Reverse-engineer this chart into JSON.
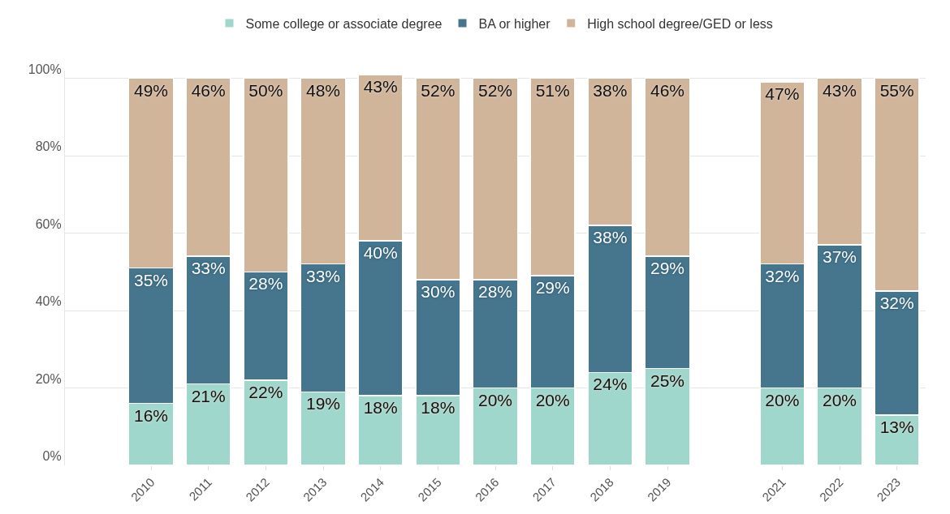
{
  "chart_data": {
    "type": "bar",
    "stacked": true,
    "categories": [
      "2010",
      "2011",
      "2012",
      "2013",
      "2014",
      "2015",
      "2016",
      "2017",
      "2018",
      "2019",
      null,
      "2021",
      "2022",
      "2023"
    ],
    "series": [
      {
        "name": "Some college or associate degree",
        "color": "#a0d7cd",
        "values": [
          16,
          21,
          22,
          19,
          18,
          18,
          20,
          20,
          24,
          25,
          null,
          20,
          20,
          13
        ],
        "value_labels": [
          "16%",
          "21%",
          "22%",
          "19%",
          "18%",
          "18%",
          "20%",
          "20%",
          "24%",
          "25%",
          null,
          "20%",
          "20%",
          "13%"
        ]
      },
      {
        "name": "BA or higher",
        "color": "#46768d",
        "values": [
          35,
          33,
          28,
          33,
          40,
          30,
          28,
          29,
          38,
          29,
          null,
          32,
          37,
          32
        ],
        "value_labels": [
          "35%",
          "33%",
          "28%",
          "33%",
          "40%",
          "30%",
          "28%",
          "29%",
          "38%",
          "29%",
          null,
          "32%",
          "37%",
          "32%"
        ]
      },
      {
        "name": "High school degree/GED or less",
        "color": "#d1b59b",
        "values": [
          49,
          46,
          50,
          48,
          43,
          52,
          52,
          51,
          38,
          46,
          null,
          47,
          43,
          55
        ],
        "value_labels": [
          "49%",
          "46%",
          "50%",
          "48%",
          "43%",
          "52%",
          "52%",
          "51%",
          "38%",
          "46%",
          null,
          "47%",
          "43%",
          "55%"
        ]
      }
    ],
    "ylim": [
      0,
      102
    ],
    "yticks": [
      {
        "value": 0,
        "label": "0%"
      },
      {
        "value": 20,
        "label": "20%"
      },
      {
        "value": 40,
        "label": "40%"
      },
      {
        "value": 60,
        "label": "60%"
      },
      {
        "value": 80,
        "label": "80%"
      },
      {
        "value": 100,
        "label": "100%"
      }
    ],
    "grid": "y",
    "legend": "top"
  }
}
